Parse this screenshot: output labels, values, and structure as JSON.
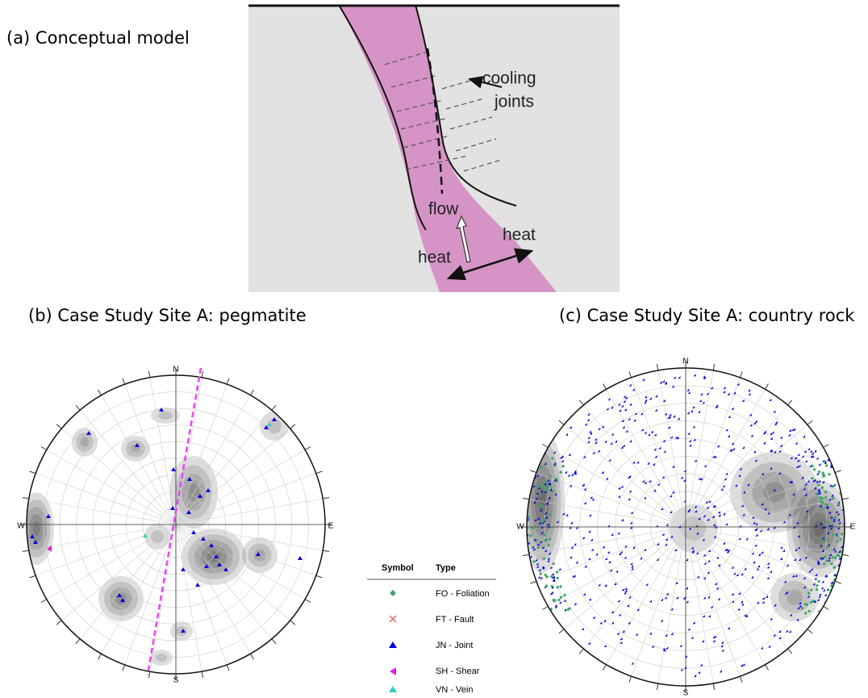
{
  "panel_a": {
    "label": "(a)  Conceptual model",
    "annotations": {
      "cooling": "cooling",
      "joints": "joints",
      "flow": "flow",
      "heat_right": "heat",
      "heat_left": "heat"
    }
  },
  "panel_b": {
    "title": "(b) Case Study Site A: pegmatite",
    "compass": {
      "n": "N",
      "e": "E",
      "s": "S",
      "w": "W"
    }
  },
  "panel_c": {
    "title": "(c) Case Study Site A: country rock",
    "compass": {
      "n": "N",
      "e": "E",
      "s": "S",
      "w": "W"
    }
  },
  "legend": {
    "headers": [
      "Symbol",
      "Type"
    ],
    "rows": [
      "FO - Foliation",
      "FT - Fault",
      "JN - Joint",
      "SH - Shear",
      "VN - Vein"
    ]
  }
}
